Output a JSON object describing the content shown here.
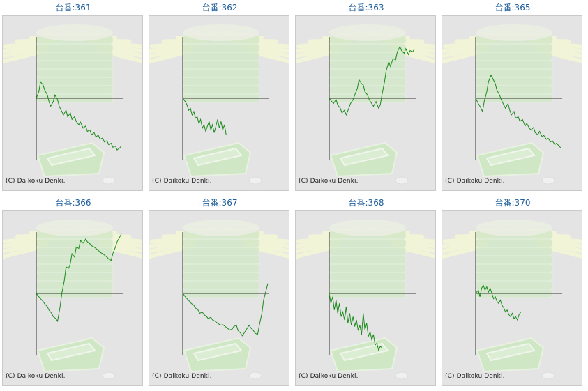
{
  "copyright": "(C) Daikoku Denki.",
  "colors": {
    "title": "#1c5d9a",
    "line": "#1a8a1a",
    "axis": "#333333",
    "panel": "#e4e4e4"
  },
  "chart_data": [
    {
      "type": "line",
      "title": "台番:361",
      "x": [
        0,
        3,
        5,
        8,
        10,
        13,
        15,
        17,
        20,
        22,
        25,
        27,
        30,
        32,
        35,
        37,
        40,
        42,
        45,
        47,
        50,
        52,
        55,
        58,
        60,
        63,
        65,
        68,
        70,
        73,
        75,
        78,
        80,
        83,
        85,
        88,
        90,
        93,
        95,
        98,
        100
      ],
      "values": [
        0,
        10,
        25,
        20,
        12,
        5,
        -5,
        -12,
        -5,
        5,
        -2,
        -12,
        -20,
        -25,
        -18,
        -28,
        -22,
        -32,
        -28,
        -35,
        -40,
        -36,
        -45,
        -42,
        -50,
        -48,
        -55,
        -52,
        -58,
        -56,
        -62,
        -60,
        -66,
        -64,
        -70,
        -68,
        -74,
        -72,
        -78,
        -75,
        -72
      ]
    },
    {
      "type": "line",
      "title": "台番:362",
      "x": [
        0,
        3,
        5,
        7,
        9,
        11,
        13,
        15,
        17,
        19,
        21,
        23,
        25,
        27,
        29,
        31,
        33,
        35,
        37,
        39,
        41,
        43,
        45,
        47,
        49,
        51
      ],
      "values": [
        0,
        -5,
        -10,
        -18,
        -15,
        -25,
        -20,
        -30,
        -28,
        -38,
        -32,
        -45,
        -40,
        -50,
        -42,
        -35,
        -48,
        -40,
        -52,
        -42,
        -32,
        -45,
        -35,
        -48,
        -40,
        -55
      ]
    },
    {
      "type": "line",
      "title": "台番:363",
      "x": [
        0,
        3,
        5,
        8,
        10,
        13,
        15,
        18,
        20,
        23,
        25,
        28,
        30,
        33,
        35,
        38,
        40,
        42,
        45,
        47,
        50,
        52,
        55,
        58,
        60,
        62,
        65,
        67,
        70,
        72,
        75,
        78,
        80,
        83,
        85,
        88,
        90,
        93,
        95,
        98,
        100
      ],
      "values": [
        0,
        -5,
        -8,
        -2,
        -10,
        -15,
        -22,
        -18,
        -25,
        -15,
        -8,
        -2,
        5,
        15,
        28,
        22,
        20,
        10,
        5,
        -2,
        -8,
        -12,
        -5,
        -15,
        -10,
        5,
        25,
        42,
        55,
        48,
        60,
        58,
        70,
        78,
        72,
        68,
        75,
        66,
        72,
        70,
        74
      ]
    },
    {
      "type": "line",
      "title": "台番:365",
      "x": [
        0,
        3,
        5,
        8,
        10,
        13,
        15,
        18,
        20,
        23,
        25,
        28,
        30,
        33,
        35,
        38,
        40,
        42,
        45,
        47,
        50,
        52,
        55,
        58,
        60,
        63,
        65,
        68,
        70,
        73,
        75,
        78,
        80,
        83,
        85,
        88,
        90,
        93,
        95,
        98,
        100
      ],
      "values": [
        0,
        -8,
        -12,
        -20,
        -5,
        10,
        25,
        35,
        30,
        22,
        12,
        5,
        -2,
        -10,
        -15,
        -8,
        -18,
        -25,
        -20,
        -30,
        -28,
        -35,
        -32,
        -42,
        -38,
        -45,
        -48,
        -44,
        -52,
        -55,
        -50,
        -58,
        -56,
        -62,
        -60,
        -66,
        -64,
        -70,
        -68,
        -72,
        -75
      ]
    },
    {
      "type": "line",
      "title": "台番:366",
      "x": [
        0,
        3,
        5,
        8,
        10,
        13,
        15,
        18,
        20,
        23,
        25,
        28,
        30,
        33,
        35,
        38,
        40,
        42,
        45,
        47,
        50,
        52,
        55,
        58,
        60,
        63,
        65,
        68,
        70,
        73,
        75,
        78,
        80,
        83,
        85,
        88,
        90,
        93,
        95,
        98,
        100
      ],
      "values": [
        0,
        -5,
        -8,
        -12,
        -16,
        -20,
        -25,
        -30,
        -35,
        -38,
        -42,
        -20,
        0,
        20,
        40,
        38,
        45,
        60,
        55,
        70,
        68,
        80,
        76,
        82,
        78,
        75,
        72,
        70,
        68,
        65,
        62,
        60,
        58,
        55,
        52,
        50,
        60,
        70,
        78,
        85,
        90
      ]
    },
    {
      "type": "line",
      "title": "台番:367",
      "x": [
        0,
        3,
        5,
        8,
        10,
        13,
        15,
        18,
        20,
        23,
        25,
        28,
        30,
        33,
        35,
        38,
        40,
        42,
        45,
        47,
        50,
        52,
        55,
        58,
        60,
        63,
        65,
        68,
        70,
        73,
        75,
        78,
        80,
        83,
        85,
        88,
        90,
        93,
        95,
        98,
        100
      ],
      "values": [
        0,
        -5,
        -8,
        -12,
        -15,
        -18,
        -22,
        -25,
        -30,
        -28,
        -32,
        -35,
        -38,
        -36,
        -40,
        -42,
        -44,
        -46,
        -48,
        -47,
        -50,
        -52,
        -55,
        -54,
        -50,
        -48,
        -56,
        -60,
        -64,
        -58,
        -54,
        -48,
        -52,
        -56,
        -60,
        -62,
        -48,
        -30,
        -10,
        5,
        15
      ]
    },
    {
      "type": "line",
      "title": "台番:368",
      "x": [
        0,
        2,
        4,
        6,
        8,
        10,
        12,
        14,
        16,
        18,
        20,
        22,
        24,
        26,
        28,
        30,
        32,
        34,
        36,
        38,
        40,
        42,
        44,
        46,
        48,
        50,
        52,
        54,
        56,
        58,
        60,
        62
      ],
      "values": [
        0,
        -15,
        -5,
        -25,
        -10,
        -30,
        -15,
        -35,
        -28,
        -40,
        -20,
        -45,
        -30,
        -48,
        -35,
        -50,
        -40,
        -56,
        -48,
        -62,
        -30,
        -55,
        -45,
        -65,
        -58,
        -70,
        -62,
        -78,
        -75,
        -86,
        -80,
        -82
      ]
    },
    {
      "type": "line",
      "title": "台番:370",
      "x": [
        0,
        3,
        5,
        7,
        9,
        11,
        13,
        15,
        17,
        19,
        21,
        23,
        25,
        27,
        29,
        31,
        33,
        35,
        37,
        39,
        41,
        43,
        45,
        47,
        49,
        51,
        53
      ],
      "values": [
        0,
        5,
        -5,
        8,
        12,
        5,
        10,
        2,
        8,
        0,
        -8,
        -5,
        -12,
        -15,
        -10,
        -18,
        -22,
        -28,
        -25,
        -32,
        -35,
        -30,
        -38,
        -35,
        -40,
        -32,
        -28
      ]
    }
  ]
}
